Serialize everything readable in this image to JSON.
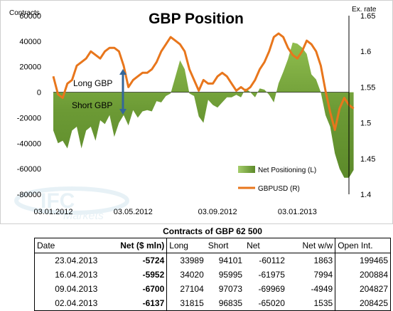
{
  "chart_data": {
    "type": "area+line",
    "title": "GBP Position",
    "ylabel_left": "Contracts",
    "ylabel_right": "Ex. rate",
    "ylim_left": [
      -80000,
      60000
    ],
    "yticks_left": [
      "-80000",
      "-60000",
      "-40000",
      "-20000",
      "0",
      "20000",
      "40000",
      "60000"
    ],
    "ylim_right": [
      1.4,
      1.65
    ],
    "yticks_right": [
      "1.4",
      "1.45",
      "1.5",
      "1.55",
      "1.6",
      "1.65"
    ],
    "xlim": [
      0,
      63
    ],
    "xticks": [
      {
        "pos": 0,
        "label": "03.01.2012"
      },
      {
        "pos": 17,
        "label": "03.05.2012"
      },
      {
        "pos": 35,
        "label": "03.09.2012"
      },
      {
        "pos": 52,
        "label": "03.01.2013"
      }
    ],
    "series": [
      {
        "name": "Net Positioning (L)",
        "kind": "area",
        "color": "#6c9a35",
        "values": [
          -30000,
          -40000,
          -38000,
          -44000,
          -30000,
          -27000,
          -44000,
          -30000,
          -27000,
          -38000,
          -22000,
          -25000,
          -18000,
          -35000,
          -24000,
          -18000,
          -26000,
          -14000,
          -20000,
          -15000,
          -14000,
          -15000,
          -7000,
          -8000,
          -3000,
          -1000,
          12000,
          25000,
          18000,
          -1000,
          -3000,
          -19000,
          -24000,
          -6000,
          -10000,
          -12000,
          -8000,
          -4000,
          -4000,
          -2000,
          -4000,
          3000,
          0,
          -4000,
          3000,
          2000,
          -2000,
          -8000,
          7000,
          16000,
          26000,
          39000,
          38000,
          35000,
          30000,
          14000,
          10000,
          0,
          -18000,
          -27000,
          -48000,
          -60000,
          -67000,
          -67000,
          -61000
        ],
        "x_start": 0
      },
      {
        "name": "GBPUSD (R)",
        "kind": "line",
        "color": "#e8761c",
        "values": [
          1.565,
          1.54,
          1.535,
          1.555,
          1.56,
          1.58,
          1.585,
          1.59,
          1.6,
          1.595,
          1.59,
          1.6,
          1.605,
          1.605,
          1.6,
          1.58,
          1.55,
          1.56,
          1.565,
          1.57,
          1.57,
          1.575,
          1.585,
          1.6,
          1.61,
          1.62,
          1.615,
          1.61,
          1.6,
          1.575,
          1.56,
          1.545,
          1.56,
          1.555,
          1.555,
          1.565,
          1.57,
          1.565,
          1.555,
          1.545,
          1.55,
          1.545,
          1.55,
          1.56,
          1.575,
          1.585,
          1.6,
          1.62,
          1.625,
          1.62,
          1.605,
          1.595,
          1.59,
          1.6,
          1.615,
          1.61,
          1.6,
          1.58,
          1.545,
          1.515,
          1.49,
          1.52,
          1.535,
          1.525,
          1.52
        ],
        "x_start": 0
      }
    ],
    "annotations": {
      "long_label": "Long GBP",
      "short_label": "Short GBP"
    },
    "legend": {
      "placement": "bottom-right"
    },
    "grid": false
  },
  "colors": {
    "area": "#6c9a35",
    "line": "#e8761c",
    "arrow": "#34679a"
  },
  "watermark": {
    "text": "IFC",
    "sub": "Markets"
  },
  "table": {
    "caption": "Contracts of GBP 62 500",
    "headers": [
      "Date",
      "Net ($ mln)",
      "Long",
      "Short",
      "Net",
      "Net w/w",
      "Open Int."
    ],
    "rows": [
      [
        "23.04.2013",
        "-5724",
        "33989",
        "94101",
        "-60112",
        "1863",
        "199465"
      ],
      [
        "16.04.2013",
        "-5952",
        "34020",
        "95995",
        "-61975",
        "7994",
        "200884"
      ],
      [
        "09.04.2013",
        "-6700",
        "27104",
        "97073",
        "-69969",
        "-4949",
        "204827"
      ],
      [
        "02.04.2013",
        "-6137",
        "31815",
        "96835",
        "-65020",
        "1535",
        "208425"
      ]
    ]
  }
}
